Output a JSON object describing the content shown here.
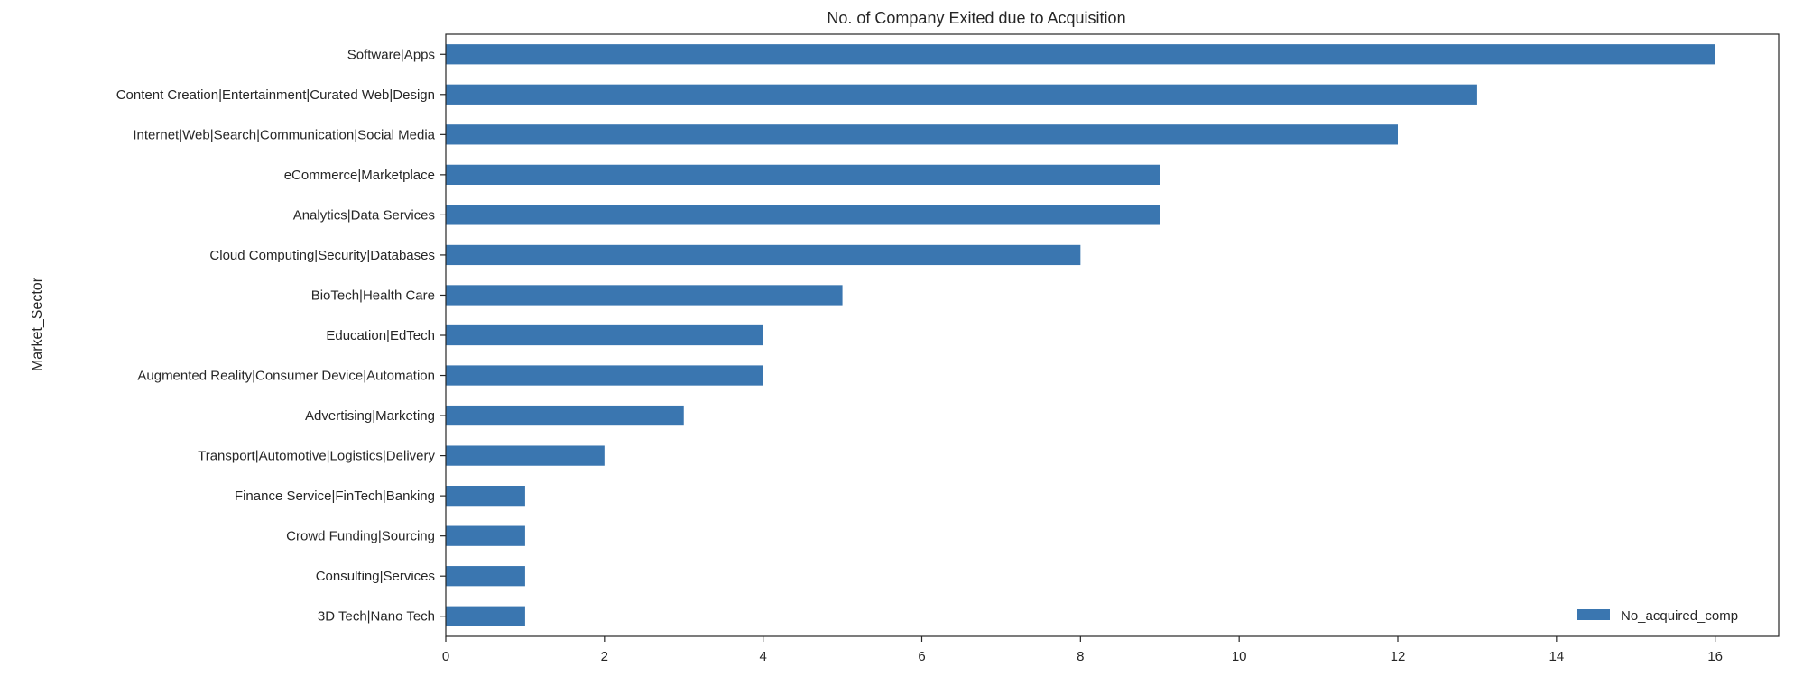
{
  "chart_data": {
    "type": "bar",
    "orientation": "horizontal",
    "title": "No. of Company Exited due to Acquisition",
    "xlabel": "",
    "ylabel": "Market_Sector",
    "categories": [
      "Software|Apps",
      "Content Creation|Entertainment|Curated Web|Design",
      "Internet|Web|Search|Communication|Social Media",
      "eCommerce|Marketplace",
      "Analytics|Data Services",
      "Cloud Computing|Security|Databases",
      "BioTech|Health Care",
      "Education|EdTech",
      "Augmented Reality|Consumer Device|Automation",
      "Advertising|Marketing",
      "Transport|Automotive|Logistics|Delivery",
      "Finance Service|FinTech|Banking",
      "Crowd Funding|Sourcing",
      "Consulting|Services",
      "3D Tech|Nano Tech"
    ],
    "series": [
      {
        "name": "No_acquired_comp",
        "color": "#3a76b0",
        "values": [
          16,
          13,
          12,
          9,
          9,
          8,
          5,
          4,
          4,
          3,
          2,
          1,
          1,
          1,
          1
        ]
      }
    ],
    "xlim": [
      0,
      16.8
    ],
    "xticks": [
      0,
      2,
      4,
      6,
      8,
      10,
      12,
      14,
      16
    ],
    "grid": false,
    "legend": "lower-right"
  }
}
